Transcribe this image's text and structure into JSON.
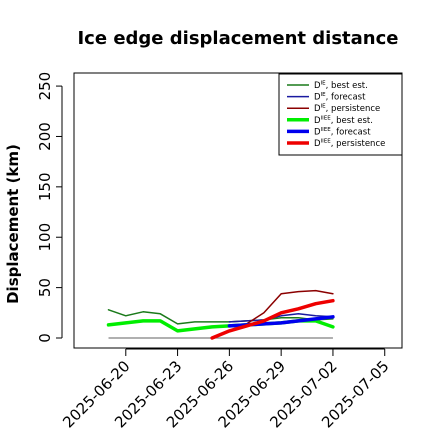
{
  "chart_data": {
    "type": "line",
    "title": "Ice edge displacement distance",
    "xlabel": "",
    "ylabel": "Displacement (km)",
    "ylim": [
      0,
      260
    ],
    "y_ticks": [
      0,
      50,
      100,
      150,
      200,
      250
    ],
    "xlim": [
      "2025-06-17",
      "2025-07-06"
    ],
    "x_ticks": [
      {
        "label": "2025-06-20",
        "date": "2025-06-20",
        "color": "#000000"
      },
      {
        "label": "2025-06-23",
        "date": "2025-06-23",
        "color": "#000000"
      },
      {
        "label": "2025-06-26",
        "date": "2025-06-26",
        "color": "#228B22"
      },
      {
        "label": "2025-06-29",
        "date": "2025-06-29",
        "color": "#000000"
      },
      {
        "label": "2025-07-02",
        "date": "2025-07-02",
        "color": "#000000"
      },
      {
        "label": "2025-07-05",
        "date": "2025-07-05",
        "color": "#000000"
      }
    ],
    "reference_line": {
      "y": 0,
      "from": "2025-06-19",
      "to": "2025-07-02",
      "color": "#808080"
    },
    "legend_position": "top-right",
    "series": [
      {
        "name_main": "D",
        "name_sup": "IE",
        "name_rest": ", best est.",
        "color": "#1a7a1a",
        "width": 1.5,
        "points": [
          [
            "2025-06-19",
            28
          ],
          [
            "2025-06-20",
            22
          ],
          [
            "2025-06-21",
            26
          ],
          [
            "2025-06-22",
            24
          ],
          [
            "2025-06-23",
            14
          ],
          [
            "2025-06-24",
            16
          ],
          [
            "2025-06-25",
            16
          ],
          [
            "2025-06-26",
            16
          ],
          [
            "2025-06-27",
            17
          ],
          [
            "2025-06-28",
            18
          ],
          [
            "2025-06-29",
            20
          ],
          [
            "2025-06-30",
            20
          ],
          [
            "2025-07-01",
            18
          ],
          [
            "2025-07-02",
            19
          ]
        ]
      },
      {
        "name_main": "D",
        "name_sup": "IE",
        "name_rest": ", forecast",
        "color": "#1a1aa0",
        "width": 1.5,
        "points": [
          [
            "2025-06-26",
            16
          ],
          [
            "2025-06-27",
            17
          ],
          [
            "2025-06-28",
            18
          ],
          [
            "2025-06-29",
            22
          ],
          [
            "2025-06-30",
            24
          ],
          [
            "2025-07-01",
            22
          ],
          [
            "2025-07-02",
            21
          ]
        ]
      },
      {
        "name_main": "D",
        "name_sup": "IE",
        "name_rest": ", persistence",
        "color": "#8b0000",
        "width": 1.5,
        "points": [
          [
            "2025-06-26",
            12
          ],
          [
            "2025-06-27",
            14
          ],
          [
            "2025-06-28",
            25
          ],
          [
            "2025-06-29",
            44
          ],
          [
            "2025-06-30",
            46
          ],
          [
            "2025-07-01",
            47
          ],
          [
            "2025-07-02",
            44
          ]
        ]
      },
      {
        "name_main": "D",
        "name_sup": "IIEE",
        "name_rest": ", best est.",
        "color": "#00ee00",
        "width": 3.5,
        "points": [
          [
            "2025-06-19",
            13
          ],
          [
            "2025-06-20",
            15
          ],
          [
            "2025-06-21",
            17
          ],
          [
            "2025-06-22",
            17
          ],
          [
            "2025-06-23",
            7
          ],
          [
            "2025-06-24",
            9
          ],
          [
            "2025-06-25",
            11
          ],
          [
            "2025-06-26",
            12
          ],
          [
            "2025-06-27",
            13
          ],
          [
            "2025-06-28",
            14
          ],
          [
            "2025-06-29",
            15
          ],
          [
            "2025-06-30",
            17
          ],
          [
            "2025-07-01",
            17
          ],
          [
            "2025-07-02",
            11
          ]
        ]
      },
      {
        "name_main": "D",
        "name_sup": "IIEE",
        "name_rest": ", forecast",
        "color": "#0000ee",
        "width": 3.5,
        "points": [
          [
            "2025-06-26",
            12
          ],
          [
            "2025-06-27",
            13
          ],
          [
            "2025-06-28",
            14
          ],
          [
            "2025-06-29",
            15
          ],
          [
            "2025-06-30",
            17
          ],
          [
            "2025-07-01",
            19
          ],
          [
            "2025-07-02",
            21
          ]
        ]
      },
      {
        "name_main": "D",
        "name_sup": "IIEE",
        "name_rest": ", persistence",
        "color": "#ee0000",
        "width": 3.5,
        "points": [
          [
            "2025-06-25",
            0
          ],
          [
            "2025-06-26",
            7
          ],
          [
            "2025-06-27",
            12
          ],
          [
            "2025-06-28",
            17
          ],
          [
            "2025-06-29",
            25
          ],
          [
            "2025-06-30",
            29
          ],
          [
            "2025-07-01",
            34
          ],
          [
            "2025-07-02",
            37
          ]
        ]
      }
    ]
  }
}
